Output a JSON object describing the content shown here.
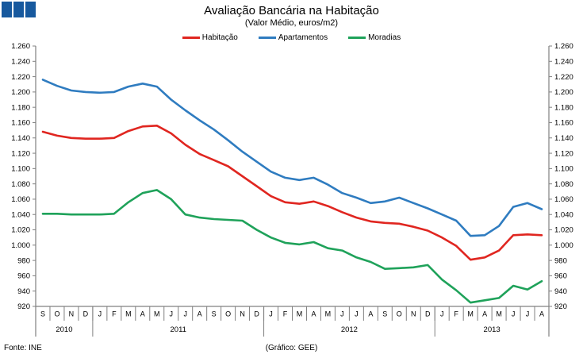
{
  "logo": {
    "square_count": 3,
    "color": "#17599E"
  },
  "header": {
    "title": "Avaliação Bancária na Habitação",
    "subtitle": "(Valor Médio, euros/m2)"
  },
  "footer": {
    "source": "Fonte: INE",
    "credit": "(Gráfico: GEE)"
  },
  "chart_data": {
    "type": "line",
    "title": "Avaliação Bancária na Habitação",
    "subtitle": "(Valor Médio, euros/m2)",
    "legend_position": "top-center",
    "grid": false,
    "dual_y_axis": true,
    "y_axis": {
      "min": 920,
      "max": 1260,
      "step": 20,
      "thousands_separator": "."
    },
    "axis_color": "#808080",
    "x_axis": {
      "month_letters": [
        "S",
        "O",
        "N",
        "D",
        "J",
        "F",
        "M",
        "A",
        "M",
        "J",
        "J",
        "A",
        "S",
        "O",
        "N",
        "D",
        "J",
        "F",
        "M",
        "A",
        "M",
        "J",
        "J",
        "A",
        "S",
        "O",
        "N",
        "D",
        "J",
        "F",
        "M",
        "A",
        "M",
        "J",
        "J",
        "A"
      ],
      "year_groups": [
        {
          "label": "2010",
          "count": 4
        },
        {
          "label": "2011",
          "count": 12
        },
        {
          "label": "2012",
          "count": 12
        },
        {
          "label": "2013",
          "count": 8
        }
      ]
    },
    "series": [
      {
        "name": "Habitação",
        "color": "#E02620",
        "values": [
          1148,
          1143,
          1140,
          1139,
          1139,
          1140,
          1149,
          1155,
          1156,
          1146,
          1131,
          1119,
          1111,
          1103,
          1090,
          1077,
          1064,
          1056,
          1054,
          1057,
          1051,
          1043,
          1036,
          1031,
          1029,
          1028,
          1024,
          1019,
          1010,
          999,
          981,
          984,
          993,
          1013,
          1014,
          1013
        ]
      },
      {
        "name": "Apartamentos",
        "color": "#2F7CC0",
        "values": [
          1216,
          1208,
          1202,
          1200,
          1199,
          1200,
          1207,
          1211,
          1207,
          1190,
          1176,
          1163,
          1151,
          1137,
          1122,
          1109,
          1096,
          1088,
          1085,
          1088,
          1079,
          1068,
          1062,
          1055,
          1057,
          1062,
          1055,
          1048,
          1040,
          1032,
          1012,
          1013,
          1025,
          1050,
          1055,
          1047
        ]
      },
      {
        "name": "Moradias",
        "color": "#1FA25A",
        "values": [
          1041,
          1041,
          1040,
          1040,
          1040,
          1041,
          1056,
          1068,
          1072,
          1060,
          1040,
          1036,
          1034,
          1033,
          1032,
          1020,
          1010,
          1003,
          1001,
          1004,
          996,
          993,
          984,
          978,
          969,
          970,
          971,
          974,
          955,
          941,
          925,
          928,
          931,
          947,
          942,
          953
        ]
      }
    ]
  }
}
